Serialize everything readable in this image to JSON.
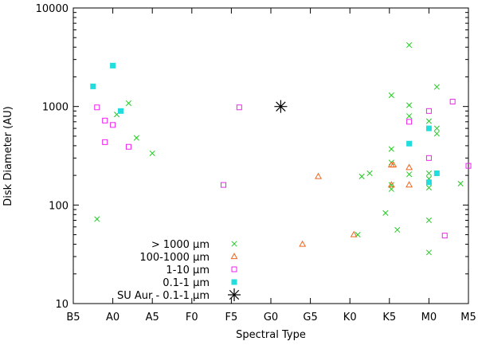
{
  "chart_data": {
    "type": "scatter",
    "title": "",
    "xlabel": "Spectral Type",
    "ylabel": "Disk Diameter (AU)",
    "x_scale": "linear",
    "y_scale": "log",
    "xlim": [
      0,
      10
    ],
    "ylim": [
      10,
      10000
    ],
    "x_ticks": [
      {
        "value": 0,
        "label": "B5"
      },
      {
        "value": 1,
        "label": "A0"
      },
      {
        "value": 2,
        "label": "A5"
      },
      {
        "value": 3,
        "label": "F0"
      },
      {
        "value": 4,
        "label": "F5"
      },
      {
        "value": 5,
        "label": "G0"
      },
      {
        "value": 6,
        "label": "G5"
      },
      {
        "value": 7,
        "label": "K0"
      },
      {
        "value": 8,
        "label": "K5"
      },
      {
        "value": 9,
        "label": "M0"
      },
      {
        "value": 10,
        "label": "M5"
      }
    ],
    "y_ticks": [
      {
        "value": 10,
        "label": "10"
      },
      {
        "value": 100,
        "label": "100"
      },
      {
        "value": 1000,
        "label": "1000"
      },
      {
        "value": 10000,
        "label": "10000"
      }
    ],
    "legend_position": "bottom-left",
    "series": [
      {
        "name": "> 1000 μm",
        "marker": "x",
        "color": "#22cc22",
        "points": [
          {
            "x": 0.6,
            "y": 72
          },
          {
            "x": 1.1,
            "y": 830
          },
          {
            "x": 1.4,
            "y": 1080
          },
          {
            "x": 1.6,
            "y": 480
          },
          {
            "x": 2.0,
            "y": 335
          },
          {
            "x": 7.3,
            "y": 195
          },
          {
            "x": 7.5,
            "y": 210
          },
          {
            "x": 7.9,
            "y": 83
          },
          {
            "x": 7.2,
            "y": 50
          },
          {
            "x": 8.2,
            "y": 56
          },
          {
            "x": 8.05,
            "y": 1300
          },
          {
            "x": 8.05,
            "y": 370
          },
          {
            "x": 8.05,
            "y": 270
          },
          {
            "x": 8.05,
            "y": 160
          },
          {
            "x": 8.05,
            "y": 145
          },
          {
            "x": 8.5,
            "y": 4200
          },
          {
            "x": 8.5,
            "y": 1030
          },
          {
            "x": 8.5,
            "y": 800
          },
          {
            "x": 8.5,
            "y": 205
          },
          {
            "x": 9.0,
            "y": 710
          },
          {
            "x": 9.0,
            "y": 210
          },
          {
            "x": 9.0,
            "y": 185
          },
          {
            "x": 9.0,
            "y": 150
          },
          {
            "x": 9.0,
            "y": 70
          },
          {
            "x": 9.0,
            "y": 33
          },
          {
            "x": 9.2,
            "y": 1580
          },
          {
            "x": 9.2,
            "y": 600
          },
          {
            "x": 9.2,
            "y": 530
          },
          {
            "x": 9.8,
            "y": 165
          }
        ]
      },
      {
        "name": "100-1000 μm",
        "marker": "triangle",
        "color": "#ee6622",
        "points": [
          {
            "x": 6.2,
            "y": 195
          },
          {
            "x": 5.8,
            "y": 40
          },
          {
            "x": 7.1,
            "y": 50
          },
          {
            "x": 8.05,
            "y": 255
          },
          {
            "x": 8.1,
            "y": 255
          },
          {
            "x": 8.05,
            "y": 160
          },
          {
            "x": 8.5,
            "y": 240
          },
          {
            "x": 8.5,
            "y": 160
          }
        ]
      },
      {
        "name": "1-10 μm",
        "marker": "square",
        "color": "#ee22ee",
        "points": [
          {
            "x": 0.6,
            "y": 980
          },
          {
            "x": 0.8,
            "y": 720
          },
          {
            "x": 1.0,
            "y": 650
          },
          {
            "x": 0.8,
            "y": 435
          },
          {
            "x": 1.4,
            "y": 390
          },
          {
            "x": 3.8,
            "y": 160
          },
          {
            "x": 4.2,
            "y": 980
          },
          {
            "x": 8.5,
            "y": 700
          },
          {
            "x": 9.0,
            "y": 900
          },
          {
            "x": 9.0,
            "y": 300
          },
          {
            "x": 9.6,
            "y": 1120
          },
          {
            "x": 9.4,
            "y": 49
          },
          {
            "x": 10.0,
            "y": 250
          }
        ]
      },
      {
        "name": "0.1-1 μm",
        "marker": "filled-square",
        "color": "#22dddd",
        "points": [
          {
            "x": 0.5,
            "y": 1600
          },
          {
            "x": 1.0,
            "y": 2600
          },
          {
            "x": 1.2,
            "y": 900
          },
          {
            "x": 8.5,
            "y": 420
          },
          {
            "x": 9.0,
            "y": 600
          },
          {
            "x": 9.0,
            "y": 170
          },
          {
            "x": 9.2,
            "y": 210
          }
        ]
      },
      {
        "name": "SU Aur - 0.1-1 μm",
        "marker": "asterisk",
        "color": "#000000",
        "points": [
          {
            "x": 5.25,
            "y": 1000
          }
        ]
      }
    ]
  }
}
